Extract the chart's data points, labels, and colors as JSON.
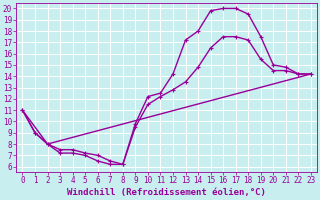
{
  "xlabel": "Windchill (Refroidissement éolien,°C)",
  "ylabel": "",
  "bg_color": "#c8eef0",
  "line_color": "#990099",
  "grid_color": "#ffffff",
  "xlim": [
    -0.5,
    23.5
  ],
  "ylim": [
    5.5,
    20.5
  ],
  "xticks": [
    0,
    1,
    2,
    3,
    4,
    5,
    6,
    7,
    8,
    9,
    10,
    11,
    12,
    13,
    14,
    15,
    16,
    17,
    18,
    19,
    20,
    21,
    22,
    23
  ],
  "yticks": [
    6,
    7,
    8,
    9,
    10,
    11,
    12,
    13,
    14,
    15,
    16,
    17,
    18,
    19,
    20
  ],
  "line1_x": [
    0,
    1,
    2,
    3,
    4,
    5,
    6,
    7,
    8,
    9,
    10,
    11,
    12,
    13,
    14,
    15,
    16,
    17,
    18,
    19,
    20,
    21,
    22,
    23
  ],
  "line1_y": [
    11.0,
    9.0,
    8.0,
    7.2,
    7.2,
    7.0,
    6.5,
    6.2,
    6.2,
    9.8,
    12.2,
    12.5,
    14.2,
    17.2,
    18.0,
    19.8,
    20.0,
    20.0,
    19.5,
    17.5,
    15.0,
    14.8,
    14.2,
    14.2
  ],
  "line2_x": [
    0,
    1,
    2,
    3,
    4,
    5,
    6,
    7,
    8,
    9,
    10,
    11,
    12,
    13,
    14,
    15,
    16,
    17,
    18,
    19,
    20,
    21,
    22,
    23
  ],
  "line2_y": [
    11.0,
    9.0,
    8.0,
    7.5,
    7.5,
    7.2,
    7.0,
    6.5,
    6.2,
    9.5,
    11.5,
    12.2,
    12.8,
    13.5,
    14.8,
    16.5,
    17.5,
    17.5,
    17.2,
    15.5,
    14.5,
    14.5,
    14.2,
    14.2
  ],
  "line3_x": [
    0,
    2,
    23
  ],
  "line3_y": [
    11.0,
    8.0,
    14.2
  ],
  "marker": "+",
  "marker_size": 3,
  "linewidth": 1.0,
  "xlabel_fontsize": 6.5,
  "tick_fontsize": 5.5
}
